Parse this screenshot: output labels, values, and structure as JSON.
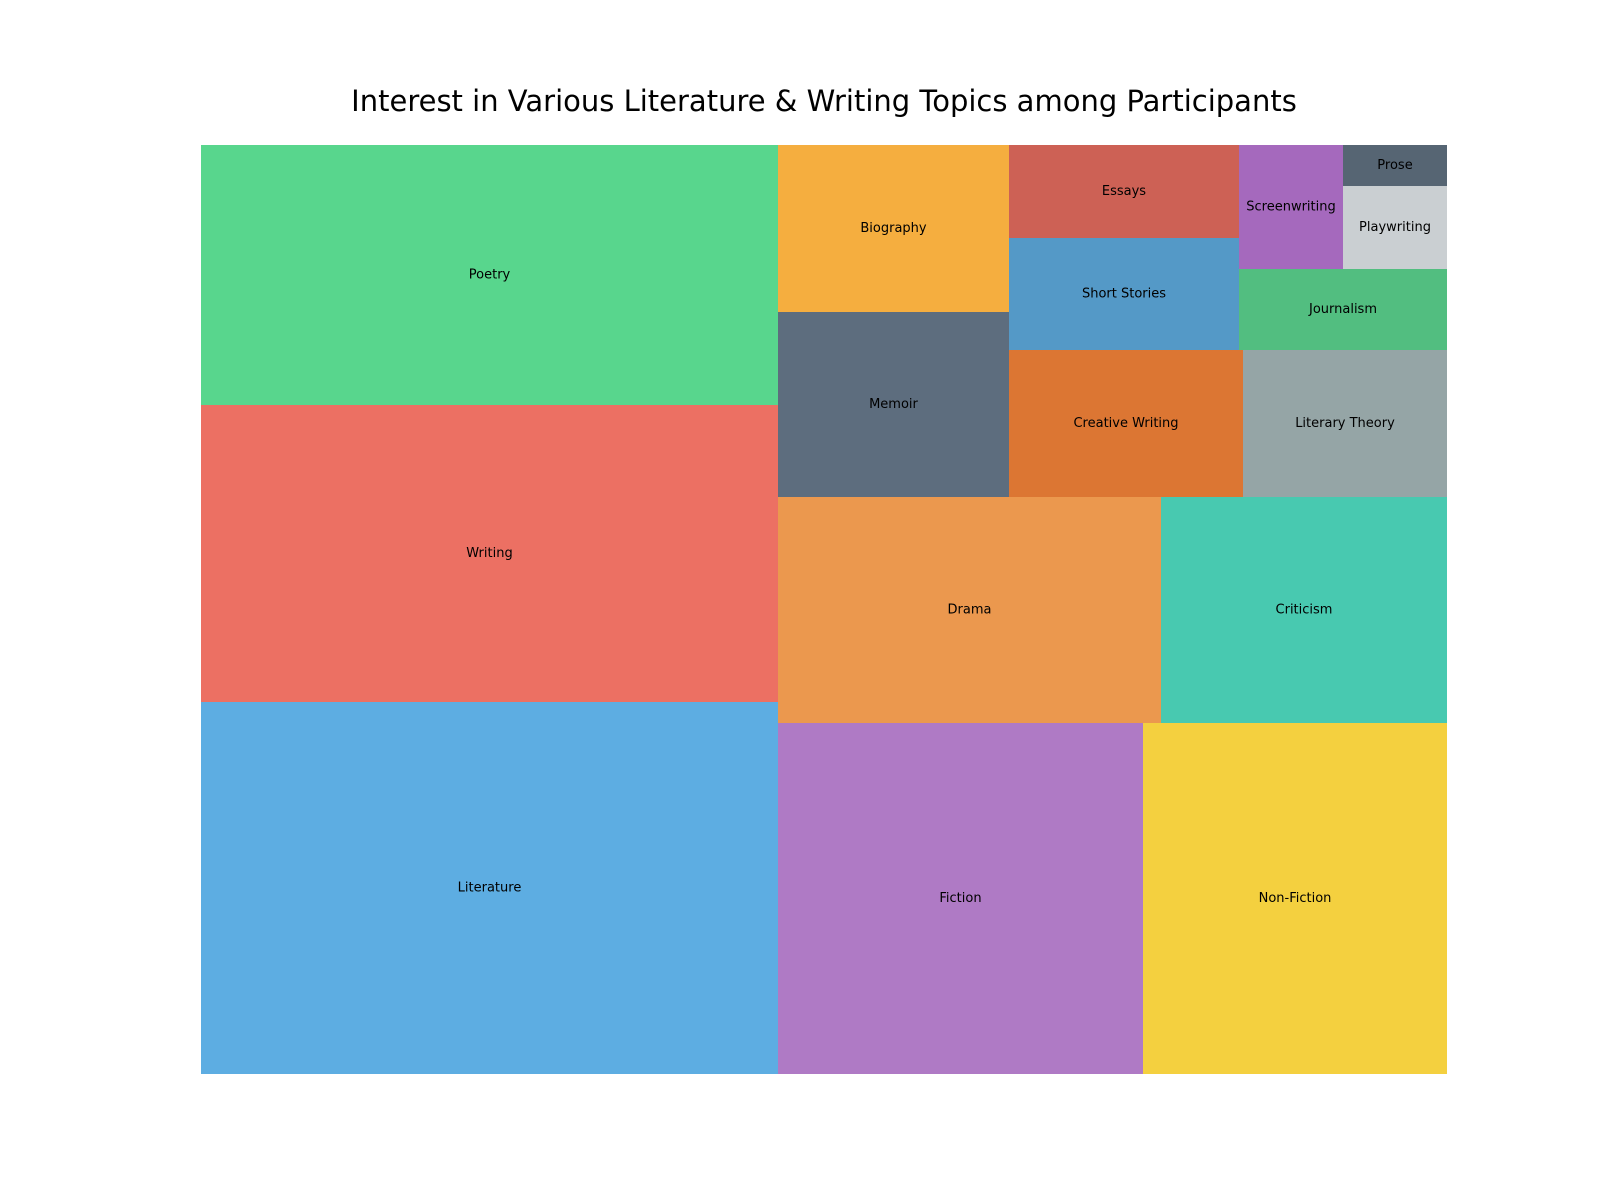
{
  "chart_data": {
    "type": "treemap",
    "title": "Interest in Various Literature & Writing Topics among Participants",
    "items": [
      {
        "label": "Literature",
        "value": 30,
        "color": "#5dade2"
      },
      {
        "label": "Writing",
        "value": 24,
        "color": "#ec7063"
      },
      {
        "label": "Poetry",
        "value": 21,
        "color": "#58d68d"
      },
      {
        "label": "Fiction",
        "value": 18,
        "color": "#af7ac5"
      },
      {
        "label": "Non-Fiction",
        "value": 15,
        "color": "#f4d03f"
      },
      {
        "label": "Drama",
        "value": 12,
        "color": "#eb984e"
      },
      {
        "label": "Criticism",
        "value": 9,
        "color": "#48c9b0"
      },
      {
        "label": "Biography",
        "value": 5.5,
        "color": "#f5ae3f"
      },
      {
        "label": "Memoir",
        "value": 6,
        "color": "#5d6d7e"
      },
      {
        "label": "Creative Writing",
        "value": 4.8,
        "color": "#dc7633"
      },
      {
        "label": "Short Stories",
        "value": 3.6,
        "color": "#5499c7"
      },
      {
        "label": "Essays",
        "value": 3,
        "color": "#cd6155"
      },
      {
        "label": "Literary Theory",
        "value": 4,
        "color": "#95a5a6"
      },
      {
        "label": "Journalism",
        "value": 2.3,
        "color": "#52be80"
      },
      {
        "label": "Screenwriting",
        "value": 1.7,
        "color": "#a569bd"
      },
      {
        "label": "Playwriting",
        "value": 1.2,
        "color": "#cacfd2"
      },
      {
        "label": "Prose",
        "value": 0.6,
        "color": "#566573"
      }
    ]
  }
}
